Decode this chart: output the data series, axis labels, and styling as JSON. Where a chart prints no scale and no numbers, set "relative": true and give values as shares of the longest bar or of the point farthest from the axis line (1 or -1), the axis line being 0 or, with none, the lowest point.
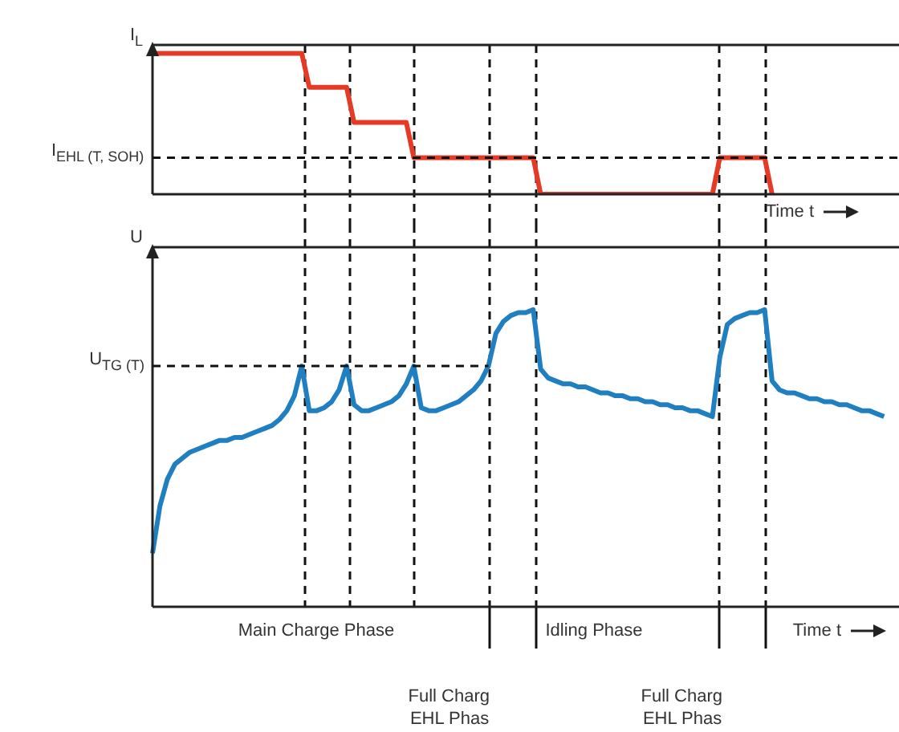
{
  "chart_data": [
    {
      "type": "line",
      "ylabel": "I$_{L}$",
      "xlabel": "Time t",
      "relative": true,
      "legend": false,
      "marker": "none",
      "line_style": "solid",
      "categories": [
        null,
        null,
        null,
        null,
        null,
        null,
        null,
        null,
        null,
        null,
        null,
        null,
        null,
        null,
        null,
        null,
        null,
        null,
        null,
        null,
        null,
        null,
        null,
        null,
        null,
        null,
        null,
        null,
        null,
        null,
        null,
        null,
        null,
        null,
        null,
        null,
        null,
        null,
        null,
        null,
        null,
        null,
        null,
        null,
        null,
        null,
        null,
        null,
        null,
        null,
        null,
        null,
        null,
        null,
        null,
        null,
        null,
        null,
        null,
        null,
        null,
        null,
        null,
        null,
        null,
        null,
        null,
        null,
        null,
        null,
        null,
        null,
        null,
        null,
        null,
        null,
        null,
        null,
        null,
        null,
        null,
        null,
        null,
        null,
        null,
        null,
        null,
        null,
        null,
        null,
        null,
        null,
        null,
        null,
        null,
        null,
        null,
        null,
        null,
        null,
        null
      ],
      "series": [
        {
          "color": "#e53a25",
          "values": [
            1,
            1,
            1,
            1,
            1,
            1,
            1,
            1,
            1,
            1,
            1,
            1,
            1,
            1,
            1,
            1,
            1,
            1,
            1,
            1,
            1,
            0.76,
            0.76,
            0.76,
            0.76,
            0.76,
            0.76,
            0.51,
            0.51,
            0.51,
            0.51,
            0.51,
            0.51,
            0.51,
            0.51,
            0.26,
            0.26,
            0.26,
            0.26,
            0.26,
            0.26,
            0.26,
            0.26,
            0.26,
            0.26,
            0.26,
            0.26,
            0.26,
            0.26,
            0.26,
            0.26,
            0.26,
            0,
            0,
            0,
            0,
            0,
            0,
            0,
            0,
            0,
            0,
            0,
            0,
            0,
            0,
            0,
            0,
            0,
            0,
            0,
            0,
            0,
            0,
            0,
            0,
            0.26,
            0.26,
            0.26,
            0.26,
            0.26,
            0.26,
            0.26,
            0,
            null,
            null,
            null,
            null,
            null,
            null,
            null,
            null,
            null,
            null,
            null,
            null,
            null,
            null,
            null,
            null,
            null
          ]
        }
      ],
      "ref_lines": [
        {
          "axis": "y",
          "value": 0.26,
          "label": "I$_{EHL (T, SOH)}$",
          "line_style": "dashed"
        }
      ]
    },
    {
      "type": "line",
      "ylabel": "U",
      "xlabel": "Time t",
      "relative": true,
      "legend": false,
      "marker": "none",
      "line_style": "solid",
      "categories": [
        null,
        null,
        null,
        null,
        null,
        null,
        null,
        null,
        null,
        null,
        null,
        null,
        null,
        null,
        null,
        null,
        null,
        null,
        null,
        null,
        null,
        null,
        null,
        null,
        null,
        null,
        null,
        null,
        null,
        null,
        null,
        null,
        null,
        null,
        null,
        null,
        null,
        null,
        null,
        null,
        null,
        null,
        null,
        null,
        null,
        null,
        null,
        null,
        null,
        null,
        null,
        null,
        null,
        null,
        null,
        null,
        null,
        null,
        null,
        null,
        null,
        null,
        null,
        null,
        null,
        null,
        null,
        null,
        null,
        null,
        null,
        null,
        null,
        null,
        null,
        null,
        null,
        null,
        null,
        null,
        null,
        null,
        null,
        null,
        null,
        null,
        null,
        null,
        null,
        null,
        null,
        null,
        null,
        null,
        null,
        null,
        null,
        null,
        null,
        null,
        null
      ],
      "series": [
        {
          "color": "#1f7fc0",
          "values": [
            0.18,
            0.34,
            0.43,
            0.48,
            0.5,
            0.52,
            0.53,
            0.54,
            0.55,
            0.56,
            0.56,
            0.57,
            0.57,
            0.58,
            0.59,
            0.6,
            0.61,
            0.63,
            0.66,
            0.71,
            0.81,
            0.66,
            0.66,
            0.67,
            0.69,
            0.73,
            0.81,
            0.68,
            0.66,
            0.66,
            0.67,
            0.68,
            0.69,
            0.71,
            0.75,
            0.81,
            0.67,
            0.66,
            0.66,
            0.67,
            0.68,
            0.69,
            0.71,
            0.73,
            0.76,
            0.81,
            0.92,
            0.96,
            0.98,
            0.99,
            0.99,
            1,
            0.8,
            0.77,
            0.76,
            0.75,
            0.75,
            0.74,
            0.74,
            0.73,
            0.72,
            0.72,
            0.71,
            0.71,
            0.7,
            0.7,
            0.69,
            0.69,
            0.68,
            0.68,
            0.67,
            0.67,
            0.66,
            0.66,
            0.65,
            0.64,
            0.84,
            0.95,
            0.97,
            0.98,
            0.99,
            0.99,
            1,
            0.76,
            0.73,
            0.72,
            0.72,
            0.71,
            0.7,
            0.7,
            0.69,
            0.69,
            0.68,
            0.68,
            0.67,
            0.66,
            0.66,
            0.65,
            0.64,
            null,
            null
          ]
        }
      ],
      "ref_lines": [
        {
          "axis": "y",
          "value": 0.81,
          "label": "U$_{TG (T)}$",
          "line_style": "dashed"
        }
      ],
      "annotations": [
        "Main Charge Phase",
        "Full Charg\nEHL Phas",
        "Idling Phase",
        "Full Charg\nEHL Phas"
      ]
    }
  ]
}
